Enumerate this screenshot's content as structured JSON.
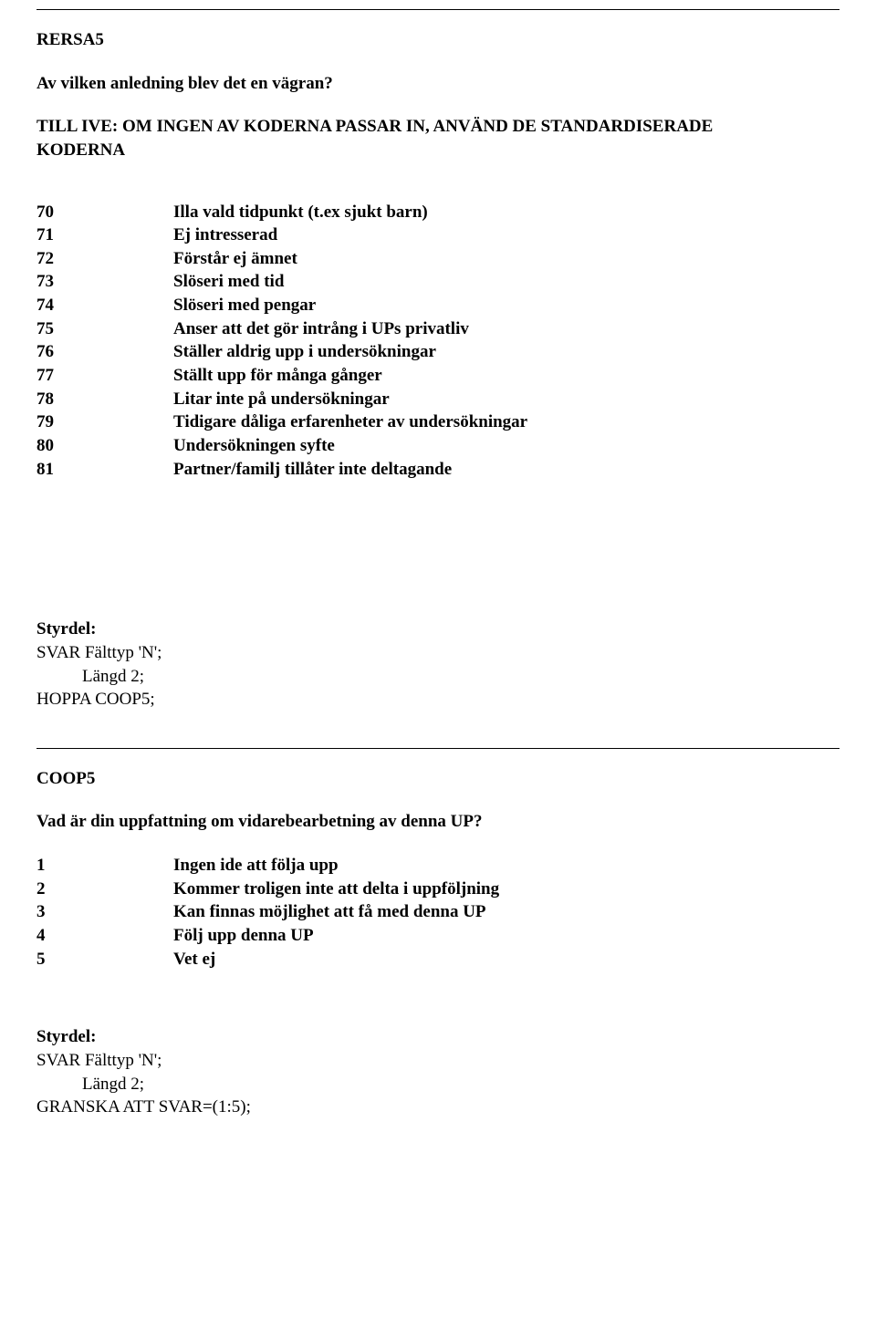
{
  "hr": "________________________________________________________________________________",
  "section1": {
    "id": "RERSA5",
    "question": "Av vilken anledning blev det en vägran?",
    "instruction_line1": "TILL IVE: OM INGEN AV KODERNA PASSAR IN,  ANVÄND DE STANDARDISERADE",
    "instruction_line2": "KODERNA",
    "codes": [
      {
        "n": "70",
        "t": "Illa vald tidpunkt (t.ex sjukt barn)"
      },
      {
        "n": "71",
        "t": "Ej intresserad"
      },
      {
        "n": "72",
        "t": "Förstår ej ämnet"
      },
      {
        "n": "73",
        "t": "Slöseri med tid"
      },
      {
        "n": "74",
        "t": "Slöseri med pengar"
      },
      {
        "n": "75",
        "t": "Anser att det gör intrång i  UPs  privatliv"
      },
      {
        "n": "76",
        "t": "Ställer aldrig  upp i undersökningar"
      },
      {
        "n": "77",
        "t": "Ställt upp för många gånger"
      },
      {
        "n": "78",
        "t": "Litar inte på undersökningar"
      },
      {
        "n": "79",
        "t": "Tidigare dåliga erfarenheter av undersökningar"
      },
      {
        "n": "80",
        "t": "Undersökningen syfte"
      },
      {
        "n": "81",
        "t": "Partner/familj tillåter inte deltagande"
      }
    ],
    "styrdel_label": "Styrdel:",
    "styrdel_lines": [
      "SVAR Fälttyp 'N';",
      "Längd 2;",
      "HOPPA COOP5;"
    ]
  },
  "section2": {
    "id": "COOP5",
    "question": "Vad är din uppfattning om vidarebearbetning av denna UP?",
    "codes": [
      {
        "n": "1",
        "t": "Ingen ide att följa upp"
      },
      {
        "n": "2",
        "t": "Kommer troligen inte att delta i uppföljning"
      },
      {
        "n": "3",
        "t": "Kan finnas möjlighet att få med denna UP"
      },
      {
        "n": "4",
        "t": "Följ upp denna UP"
      },
      {
        "n": "5",
        "t": "Vet ej"
      }
    ],
    "styrdel_label": "Styrdel:",
    "styrdel_lines": [
      "SVAR Fälttyp 'N';",
      "Längd 2;",
      "GRANSKA ATT SVAR=(1:5);"
    ]
  }
}
